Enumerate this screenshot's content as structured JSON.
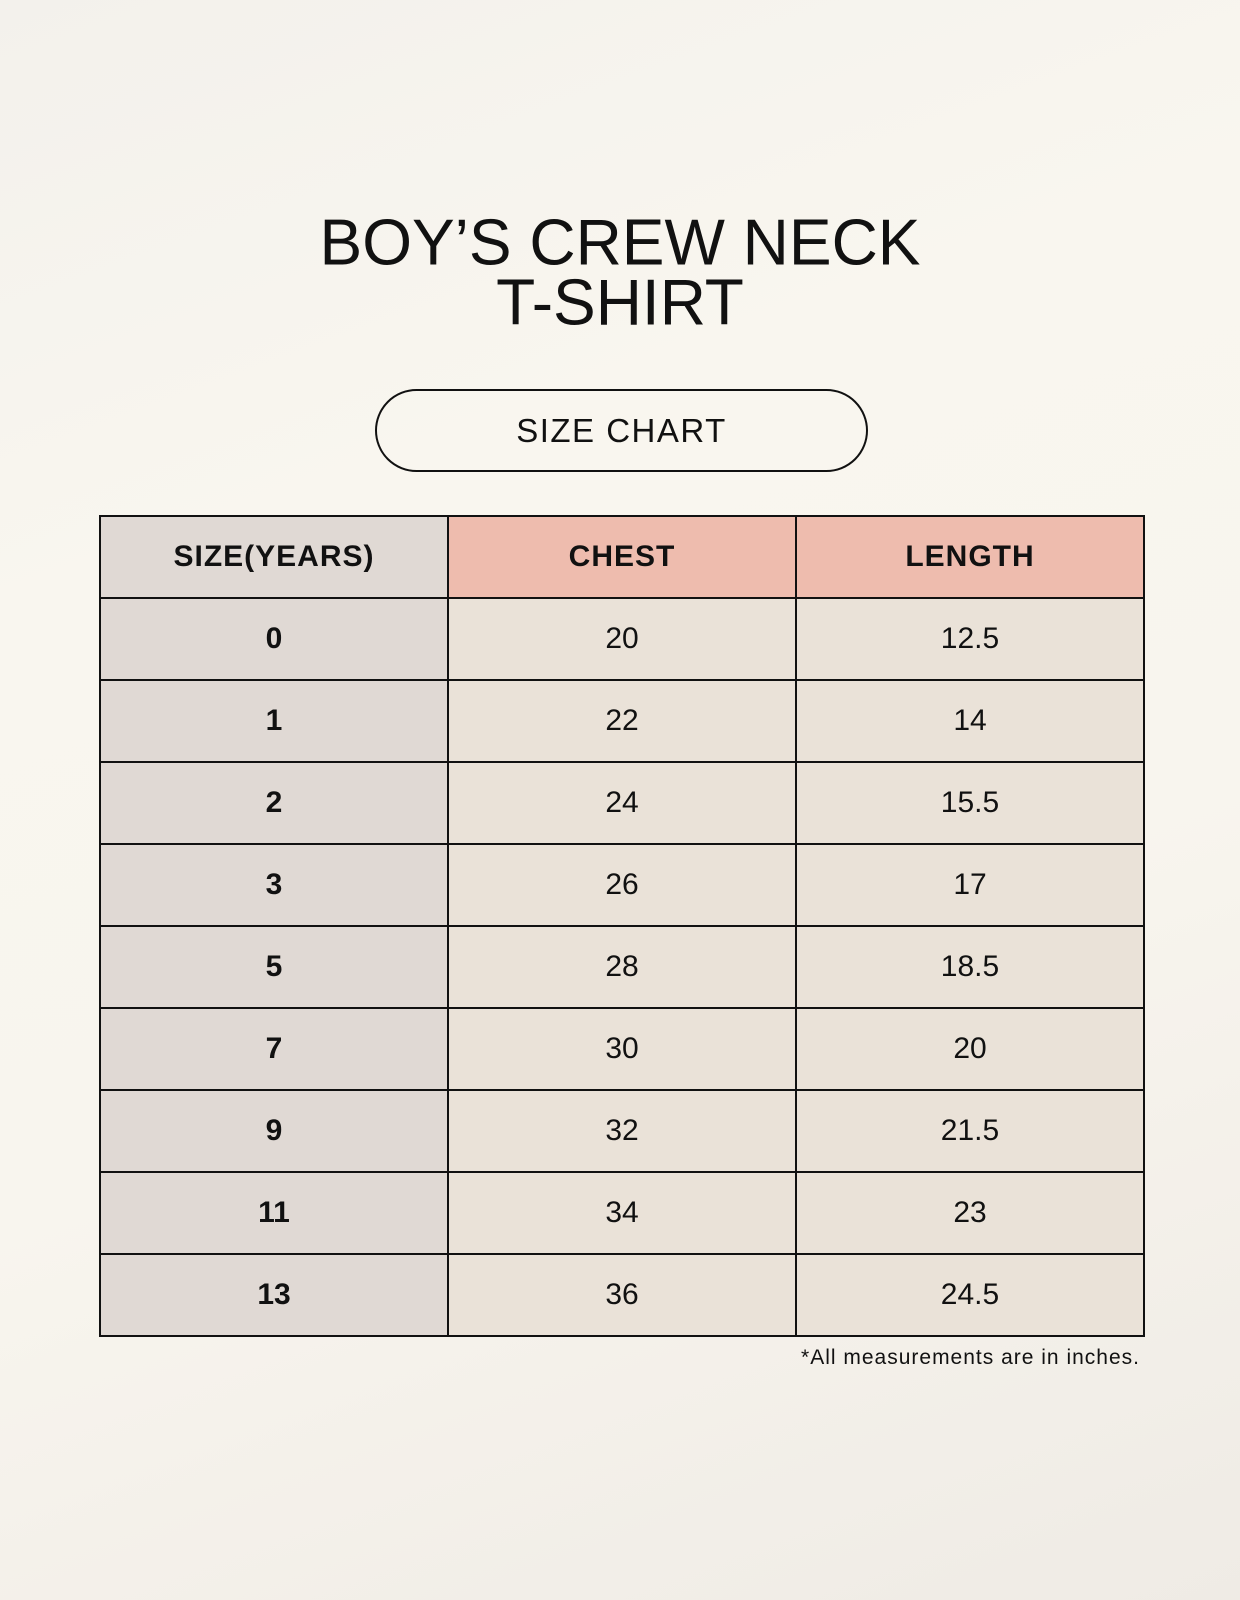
{
  "title_lines": [
    "BOY’S CREW NECK",
    "T-SHIRT"
  ],
  "subtitle_pill": "SIZE CHART",
  "colors": {
    "size_column": "#e0d9d4",
    "header_highlight": "#eebcae",
    "cell": "#eae2d8"
  },
  "table": {
    "headers": [
      "SIZE(YEARS)",
      "CHEST",
      "LENGTH"
    ],
    "rows": [
      [
        "0",
        "20",
        "12.5"
      ],
      [
        "1",
        "22",
        "14"
      ],
      [
        "2",
        "24",
        "15.5"
      ],
      [
        "3",
        "26",
        "17"
      ],
      [
        "5",
        "28",
        "18.5"
      ],
      [
        "7",
        "30",
        "20"
      ],
      [
        "9",
        "32",
        "21.5"
      ],
      [
        "11",
        "34",
        "23"
      ],
      [
        "13",
        "36",
        "24.5"
      ]
    ]
  },
  "footnote": "*All measurements are in inches."
}
